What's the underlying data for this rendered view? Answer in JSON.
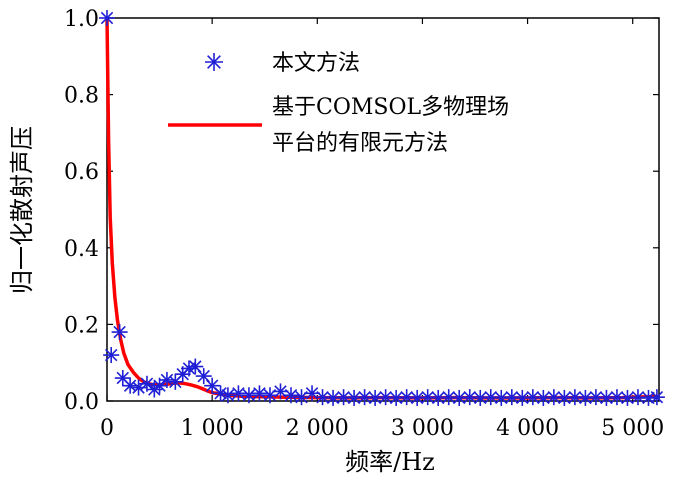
{
  "chart_data": {
    "type": "line",
    "title": "",
    "xlabel": "频率/Hz",
    "ylabel": "归一化散射声压",
    "xlim": [
      0,
      5250
    ],
    "ylim": [
      0,
      1.0
    ],
    "x_ticks": [
      0,
      1000,
      2000,
      3000,
      4000,
      5000
    ],
    "x_tick_labels": [
      "0",
      "1 000",
      "2 000",
      "3 000",
      "4 000",
      "5 000"
    ],
    "y_ticks": [
      0.0,
      0.2,
      0.4,
      0.6,
      0.8,
      1.0
    ],
    "y_tick_labels": [
      "0.0",
      "0.2",
      "0.4",
      "0.6",
      "0.8",
      "1.0"
    ],
    "grid": false,
    "legend_placement": "top",
    "legend_entries": [
      "本文方法",
      "基于COMSOL多物理场",
      "平台的有限元方法"
    ],
    "series": [
      {
        "name": "本文方法",
        "kind": "scatter",
        "marker": "asterisk",
        "color": "#1f1fd6",
        "points": [
          [
            0,
            1.0
          ],
          [
            40,
            0.12
          ],
          [
            120,
            0.18
          ],
          [
            150,
            0.06
          ],
          [
            220,
            0.04
          ],
          [
            300,
            0.035
          ],
          [
            380,
            0.045
          ],
          [
            450,
            0.03
          ],
          [
            500,
            0.04
          ],
          [
            570,
            0.055
          ],
          [
            650,
            0.05
          ],
          [
            720,
            0.07
          ],
          [
            780,
            0.085
          ],
          [
            840,
            0.09
          ],
          [
            920,
            0.065
          ],
          [
            1000,
            0.04
          ],
          [
            1080,
            0.02
          ],
          [
            1150,
            0.015
          ],
          [
            1250,
            0.02
          ],
          [
            1350,
            0.015
          ],
          [
            1450,
            0.02
          ],
          [
            1550,
            0.015
          ],
          [
            1650,
            0.025
          ],
          [
            1750,
            0.015
          ],
          [
            1850,
            0.01
          ],
          [
            1950,
            0.02
          ],
          [
            2050,
            0.01
          ],
          [
            2150,
            0.008
          ],
          [
            2250,
            0.01
          ],
          [
            2350,
            0.008
          ],
          [
            2450,
            0.01
          ],
          [
            2550,
            0.008
          ],
          [
            2650,
            0.01
          ],
          [
            2750,
            0.008
          ],
          [
            2850,
            0.01
          ],
          [
            2950,
            0.008
          ],
          [
            3050,
            0.01
          ],
          [
            3150,
            0.008
          ],
          [
            3250,
            0.01
          ],
          [
            3350,
            0.008
          ],
          [
            3450,
            0.01
          ],
          [
            3550,
            0.008
          ],
          [
            3650,
            0.01
          ],
          [
            3750,
            0.008
          ],
          [
            3850,
            0.01
          ],
          [
            3950,
            0.008
          ],
          [
            4050,
            0.01
          ],
          [
            4150,
            0.008
          ],
          [
            4250,
            0.01
          ],
          [
            4350,
            0.008
          ],
          [
            4450,
            0.01
          ],
          [
            4550,
            0.008
          ],
          [
            4650,
            0.01
          ],
          [
            4750,
            0.008
          ],
          [
            4850,
            0.01
          ],
          [
            4950,
            0.008
          ],
          [
            5050,
            0.01
          ],
          [
            5150,
            0.008
          ],
          [
            5230,
            0.01
          ]
        ]
      },
      {
        "name": "基于COMSOL多物理场平台的有限元方法",
        "kind": "line",
        "color": "#ff0000",
        "points": [
          [
            0,
            1.0
          ],
          [
            15,
            0.68
          ],
          [
            30,
            0.48
          ],
          [
            50,
            0.36
          ],
          [
            75,
            0.27
          ],
          [
            100,
            0.21
          ],
          [
            130,
            0.16
          ],
          [
            160,
            0.125
          ],
          [
            200,
            0.095
          ],
          [
            250,
            0.075
          ],
          [
            300,
            0.06
          ],
          [
            350,
            0.05
          ],
          [
            400,
            0.045
          ],
          [
            450,
            0.042
          ],
          [
            500,
            0.042
          ],
          [
            550,
            0.043
          ],
          [
            600,
            0.045
          ],
          [
            650,
            0.047
          ],
          [
            700,
            0.047
          ],
          [
            750,
            0.045
          ],
          [
            800,
            0.042
          ],
          [
            850,
            0.038
          ],
          [
            900,
            0.033
          ],
          [
            950,
            0.027
          ],
          [
            1000,
            0.022
          ],
          [
            1100,
            0.017
          ],
          [
            1200,
            0.014
          ],
          [
            1300,
            0.012
          ],
          [
            1500,
            0.011
          ],
          [
            1700,
            0.01
          ],
          [
            2000,
            0.009
          ],
          [
            2300,
            0.008
          ],
          [
            2600,
            0.009
          ],
          [
            3000,
            0.008
          ],
          [
            3300,
            0.009
          ],
          [
            3600,
            0.008
          ],
          [
            4000,
            0.008
          ],
          [
            4300,
            0.009
          ],
          [
            4600,
            0.008
          ],
          [
            4900,
            0.009
          ],
          [
            5250,
            0.012
          ]
        ]
      }
    ]
  }
}
